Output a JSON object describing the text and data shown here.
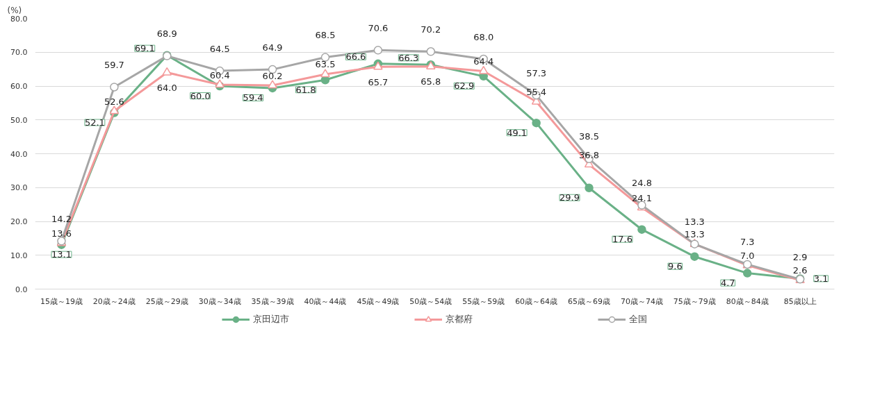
{
  "chart_data": {
    "type": "line",
    "ylabel": "(%)",
    "categories": [
      "15歳～19歳",
      "20歳～24歳",
      "25歳～29歳",
      "30歳～34歳",
      "35歳～39歳",
      "40歳～44歳",
      "45歳～49歳",
      "50歳～54歳",
      "55歳～59歳",
      "60歳～64歳",
      "65歳～69歳",
      "70歳～74歳",
      "75歳～79歳",
      "80歳～84歳",
      "85歳以上"
    ],
    "series": [
      {
        "name": "京田辺市",
        "color": "#6ab187",
        "marker": "circle",
        "values": [
          13.1,
          52.1,
          69.1,
          60.0,
          59.4,
          61.8,
          66.6,
          66.3,
          62.9,
          49.1,
          29.9,
          17.6,
          9.6,
          4.7,
          3.1
        ],
        "value_labels": [
          "13.1",
          "52.1",
          "69.1",
          "60.0",
          "59.4",
          "61.8",
          "66.6",
          "66.3",
          "62.9",
          "49.1",
          "29.9",
          "17.6",
          "9.6",
          "4.7",
          "3.1"
        ]
      },
      {
        "name": "京都府",
        "color": "#f4999a",
        "marker": "triangle",
        "values": [
          13.6,
          52.6,
          64.0,
          60.4,
          60.2,
          63.5,
          65.7,
          65.8,
          64.4,
          55.4,
          36.8,
          24.1,
          13.3,
          7.0,
          2.6
        ],
        "value_labels": [
          "13.6",
          "52.6",
          "64.0",
          "60.4",
          "60.2",
          "63.5",
          "65.7",
          "65.8",
          "64.4",
          "55.4",
          "36.8",
          "24.1",
          "13.3",
          "7.0",
          "2.6"
        ]
      },
      {
        "name": "全国",
        "color": "#a6a6a6",
        "marker": "circle",
        "values": [
          14.2,
          59.7,
          68.9,
          64.5,
          64.9,
          68.5,
          70.6,
          70.2,
          68.0,
          57.3,
          38.5,
          24.8,
          13.3,
          7.3,
          2.9
        ],
        "value_labels": [
          "14.2",
          "59.7",
          "68.9",
          "64.5",
          "64.9",
          "68.5",
          "70.6",
          "70.2",
          "68.0",
          "57.3",
          "38.5",
          "24.8",
          "13.3",
          "7.3",
          "2.9"
        ]
      }
    ],
    "ylim": [
      0,
      80
    ],
    "yticks": [
      {
        "value": 0,
        "label": "0.0"
      },
      {
        "value": 10,
        "label": "10.0"
      },
      {
        "value": 20,
        "label": "20.0"
      },
      {
        "value": 30,
        "label": "30.0"
      },
      {
        "value": 40,
        "label": "40.0"
      },
      {
        "value": 50,
        "label": "50.0"
      },
      {
        "value": 60,
        "label": "60.0"
      },
      {
        "value": 70,
        "label": "70.0"
      },
      {
        "value": 80,
        "label": "80.0"
      }
    ],
    "grid": "y",
    "legend": "bottom"
  }
}
